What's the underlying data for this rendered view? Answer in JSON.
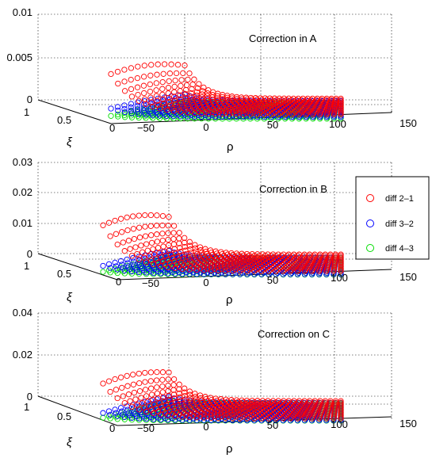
{
  "figure": {
    "background": "#ffffff"
  },
  "legend": {
    "entries": [
      {
        "label": "diff 2–1",
        "color": "#ff0000"
      },
      {
        "label": "diff 3–2",
        "color": "#0000ff"
      },
      {
        "label": "diff 4–3",
        "color": "#00dd00"
      }
    ]
  },
  "chart_data": [
    {
      "type": "scatter",
      "title": "Correction in A",
      "xlabel": "ρ",
      "ylabel": "ξ",
      "zlim": [
        0,
        0.01
      ],
      "z_ticks": [
        "0",
        "0.005",
        "0.01"
      ],
      "x_ticks": [
        "−50",
        "0",
        "50",
        "100",
        "150"
      ],
      "y_ticks": [
        "1",
        "0.5",
        "0"
      ],
      "xlim": [
        -50,
        150
      ],
      "ylim": [
        0,
        1
      ],
      "grid": true,
      "series": [
        {
          "name": "diff 2–1",
          "color": "#ff0000",
          "peak": 0.0093,
          "tail": 0.0007
        },
        {
          "name": "diff 3–2",
          "color": "#0000ff",
          "peak": 0.0022,
          "tail": 0.0004
        },
        {
          "name": "diff 4–3",
          "color": "#00dd00",
          "peak": 0.0008,
          "tail": 0.0002
        }
      ]
    },
    {
      "type": "scatter",
      "title": "Correction in B",
      "xlabel": "ρ",
      "ylabel": "ξ",
      "zlim": [
        0,
        0.03
      ],
      "z_ticks": [
        "0",
        "0.01",
        "0.02",
        "0.03"
      ],
      "x_ticks": [
        "−50",
        "0",
        "50",
        "100",
        "150"
      ],
      "y_ticks": [
        "1",
        "0.5",
        "0"
      ],
      "xlim": [
        -50,
        150
      ],
      "ylim": [
        0,
        1
      ],
      "grid": true,
      "series": [
        {
          "name": "diff 2–1",
          "color": "#ff0000",
          "peak": 0.029,
          "tail": 0.0015
        },
        {
          "name": "diff 3–2",
          "color": "#0000ff",
          "peak": 0.0055,
          "tail": 0.0005
        },
        {
          "name": "diff 4–3",
          "color": "#00dd00",
          "peak": 0.002,
          "tail": 0.0004
        }
      ]
    },
    {
      "type": "scatter",
      "title": "Correction on C",
      "xlabel": "ρ",
      "ylabel": "ξ",
      "zlim": [
        0,
        0.04
      ],
      "z_ticks": [
        "0",
        "0.02",
        "0.04"
      ],
      "x_ticks": [
        "−50",
        "0",
        "50",
        "100",
        "150"
      ],
      "y_ticks": [
        "1",
        "0.5",
        "0"
      ],
      "xlim": [
        -50,
        150
      ],
      "ylim": [
        0,
        1
      ],
      "grid": true,
      "series": [
        {
          "name": "diff 2–1",
          "color": "#ff0000",
          "peak": 0.032,
          "tail": 0.0015
        },
        {
          "name": "diff 3–2",
          "color": "#0000ff",
          "peak": 0.007,
          "tail": 0.0006
        },
        {
          "name": "diff 4–3",
          "color": "#00dd00",
          "peak": 0.003,
          "tail": 0.0004
        }
      ]
    }
  ]
}
